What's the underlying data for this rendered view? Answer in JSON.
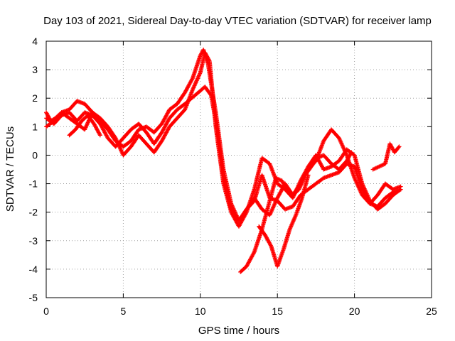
{
  "chart_data": {
    "type": "scatter",
    "title": "Day 103 of 2021, Sidereal Day-to-day VTEC variation (SDTVAR) for receiver lamp",
    "xlabel": "GPS time / hours",
    "ylabel": "SDTVAR / TECUs",
    "xlim": [
      0,
      25
    ],
    "ylim": [
      -5,
      4
    ],
    "xticks": [
      "0",
      "5",
      "10",
      "15",
      "20",
      "25"
    ],
    "yticks": [
      "4",
      "3",
      "2",
      "1",
      "0",
      "-1",
      "-2",
      "-3",
      "-4",
      "-5"
    ],
    "grid": true,
    "marker": "+",
    "color": "#ff0000",
    "series": [
      {
        "x": [
          0.0,
          0.3,
          0.6,
          1.0,
          1.5,
          2.0,
          2.5,
          3.0,
          3.5,
          4.0,
          4.5,
          5.0,
          5.5,
          6.0,
          6.5,
          7.0,
          7.5,
          8.0,
          8.5,
          9.0,
          9.5,
          10.0,
          10.2,
          10.5,
          11.0,
          11.5,
          12.0,
          12.5,
          13.0,
          13.5,
          14.0,
          14.5,
          15.0,
          15.5,
          16.0,
          16.5,
          17.0,
          17.5,
          18.0,
          18.5,
          19.0,
          19.5,
          20.0,
          20.5,
          21.0,
          21.5,
          22.0,
          22.5,
          23.0
        ],
        "y": [
          1.5,
          1.2,
          1.3,
          1.5,
          1.6,
          1.9,
          1.8,
          1.5,
          1.2,
          0.9,
          0.5,
          0.3,
          0.5,
          0.9,
          1.0,
          0.8,
          1.1,
          1.6,
          1.8,
          2.2,
          2.7,
          3.5,
          3.7,
          3.2,
          1.5,
          -0.5,
          -1.7,
          -2.3,
          -1.9,
          -1.5,
          -1.9,
          -2.1,
          -1.5,
          -1.0,
          -1.4,
          -1.0,
          -0.5,
          -0.2,
          0.5,
          0.9,
          0.6,
          0.0,
          -0.8,
          -1.4,
          -1.7,
          -1.4,
          -1.0,
          -1.2,
          -1.1
        ]
      },
      {
        "x": [
          0.0,
          0.5,
          1.0,
          1.5,
          2.0,
          2.5,
          3.0,
          3.5,
          4.0,
          4.5,
          5.0,
          5.5,
          6.0,
          6.5,
          7.0,
          7.5,
          8.0,
          8.5,
          9.0,
          9.5,
          10.0,
          10.3,
          10.6,
          11.0,
          11.5,
          12.0,
          12.5,
          13.0,
          13.5,
          14.0,
          14.5,
          15.0,
          15.5,
          16.0,
          16.5,
          17.0,
          17.5,
          18.0,
          18.5,
          19.0,
          19.5,
          20.0,
          20.5,
          21.0,
          21.5,
          22.0,
          22.5,
          23.0
        ],
        "y": [
          1.0,
          1.2,
          1.5,
          1.3,
          1.1,
          0.9,
          1.5,
          1.3,
          1.0,
          0.6,
          0.0,
          0.3,
          0.7,
          0.4,
          0.1,
          0.5,
          1.0,
          1.3,
          1.6,
          2.3,
          2.9,
          3.6,
          3.3,
          1.0,
          -1.0,
          -2.0,
          -2.5,
          -2.0,
          -1.2,
          -0.1,
          -0.3,
          -1.0,
          -1.2,
          -1.5,
          -0.9,
          -0.4,
          0.0,
          -0.5,
          -0.4,
          -0.2,
          0.2,
          0.0,
          -1.0,
          -1.6,
          -1.9,
          -1.7,
          -1.4,
          -1.2
        ]
      },
      {
        "x": [
          0.0,
          0.5,
          1.0,
          1.5,
          2.0,
          2.5,
          3.0,
          3.5,
          4.0,
          4.5,
          5.0,
          5.5,
          6.0,
          6.5,
          7.0,
          7.5,
          8.0,
          8.5,
          9.0,
          10.3,
          10.7,
          11.0,
          11.5,
          12.0,
          12.5,
          13.0,
          13.5,
          14.0,
          14.5,
          15.0,
          15.5,
          16.0,
          16.5,
          17.0,
          17.5,
          18.0,
          18.5,
          19.0,
          19.5,
          20.0,
          20.5,
          21.0,
          21.5,
          22.0,
          22.5,
          23.0
        ],
        "y": [
          1.3,
          1.1,
          1.4,
          1.5,
          1.2,
          1.5,
          1.4,
          1.1,
          0.6,
          0.3,
          0.6,
          0.9,
          1.1,
          0.8,
          0.4,
          0.8,
          1.3,
          1.6,
          1.8,
          2.4,
          2.1,
          1.2,
          -0.8,
          -1.9,
          -2.3,
          -1.9,
          -1.6,
          -0.7,
          -1.5,
          -1.6,
          -1.9,
          -1.8,
          -1.4,
          -1.2,
          -1.0,
          -0.8,
          -0.7,
          -0.6,
          -0.3,
          -0.4,
          -1.2,
          -1.7,
          -1.8,
          -1.5,
          -1.3,
          -1.2
        ]
      },
      {
        "x": [
          12.6,
          13.0,
          13.5,
          14.0,
          14.5,
          14.9,
          15.3,
          15.7,
          16.0,
          16.4,
          16.8,
          17.2,
          17.6,
          18.0,
          18.5,
          19.0,
          19.5,
          19.8
        ],
        "y": [
          -4.1,
          -3.9,
          -3.4,
          -2.6,
          -1.6,
          -0.8,
          -0.9,
          -1.3,
          -1.4,
          -1.2,
          -0.7,
          -0.4,
          -0.1,
          0.0,
          -0.3,
          -0.5,
          -0.2,
          0.1
        ]
      },
      {
        "x": [
          13.8,
          14.2,
          14.6,
          15.0,
          15.4,
          15.8,
          16.2,
          16.6,
          17.0
        ],
        "y": [
          -2.5,
          -2.8,
          -3.2,
          -3.9,
          -3.3,
          -2.6,
          -2.1,
          -1.5,
          -0.7
        ]
      },
      {
        "x": [
          1.5,
          1.9,
          2.3,
          2.7,
          3.1,
          3.5
        ],
        "y": [
          0.7,
          0.9,
          1.2,
          1.4,
          1.1,
          0.7
        ]
      },
      {
        "x": [
          21.2,
          21.6,
          22.0,
          22.3,
          22.6,
          22.9
        ],
        "y": [
          -0.5,
          -0.4,
          -0.3,
          0.4,
          0.1,
          0.3
        ]
      }
    ]
  }
}
